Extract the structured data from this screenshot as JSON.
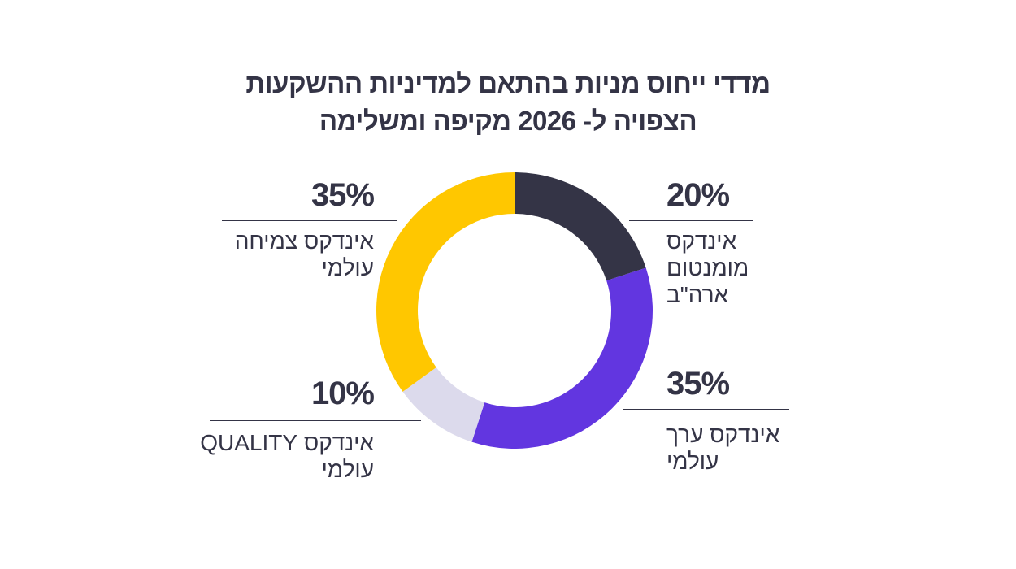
{
  "chart_data": {
    "type": "pie",
    "variant": "donut",
    "title": [
      "מדדי ייחוס מניות בהתאם למדיניות ההשקעות",
      "הצפויה ל- 2026 מקיפה ומשלימה"
    ],
    "slices": [
      {
        "value": 20,
        "label_value": "20%",
        "label": [
          "אינדקס",
          "מומנטום",
          "ארה\"ב"
        ],
        "color": "#343446"
      },
      {
        "value": 35,
        "label_value": "35%",
        "label": [
          "אינדקס ערך",
          "עולמי"
        ],
        "color": "#6236e0"
      },
      {
        "value": 10,
        "label_value": "10%",
        "label": [
          "אינדקס QUALITY",
          "עולמי"
        ],
        "color": "#dcdaec"
      },
      {
        "value": 35,
        "label_value": "35%",
        "label": [
          "אינדקס צמיחה",
          "עולמי"
        ],
        "color": "#ffc700"
      }
    ],
    "start": "top",
    "direction": "clockwise",
    "legend": "none"
  }
}
